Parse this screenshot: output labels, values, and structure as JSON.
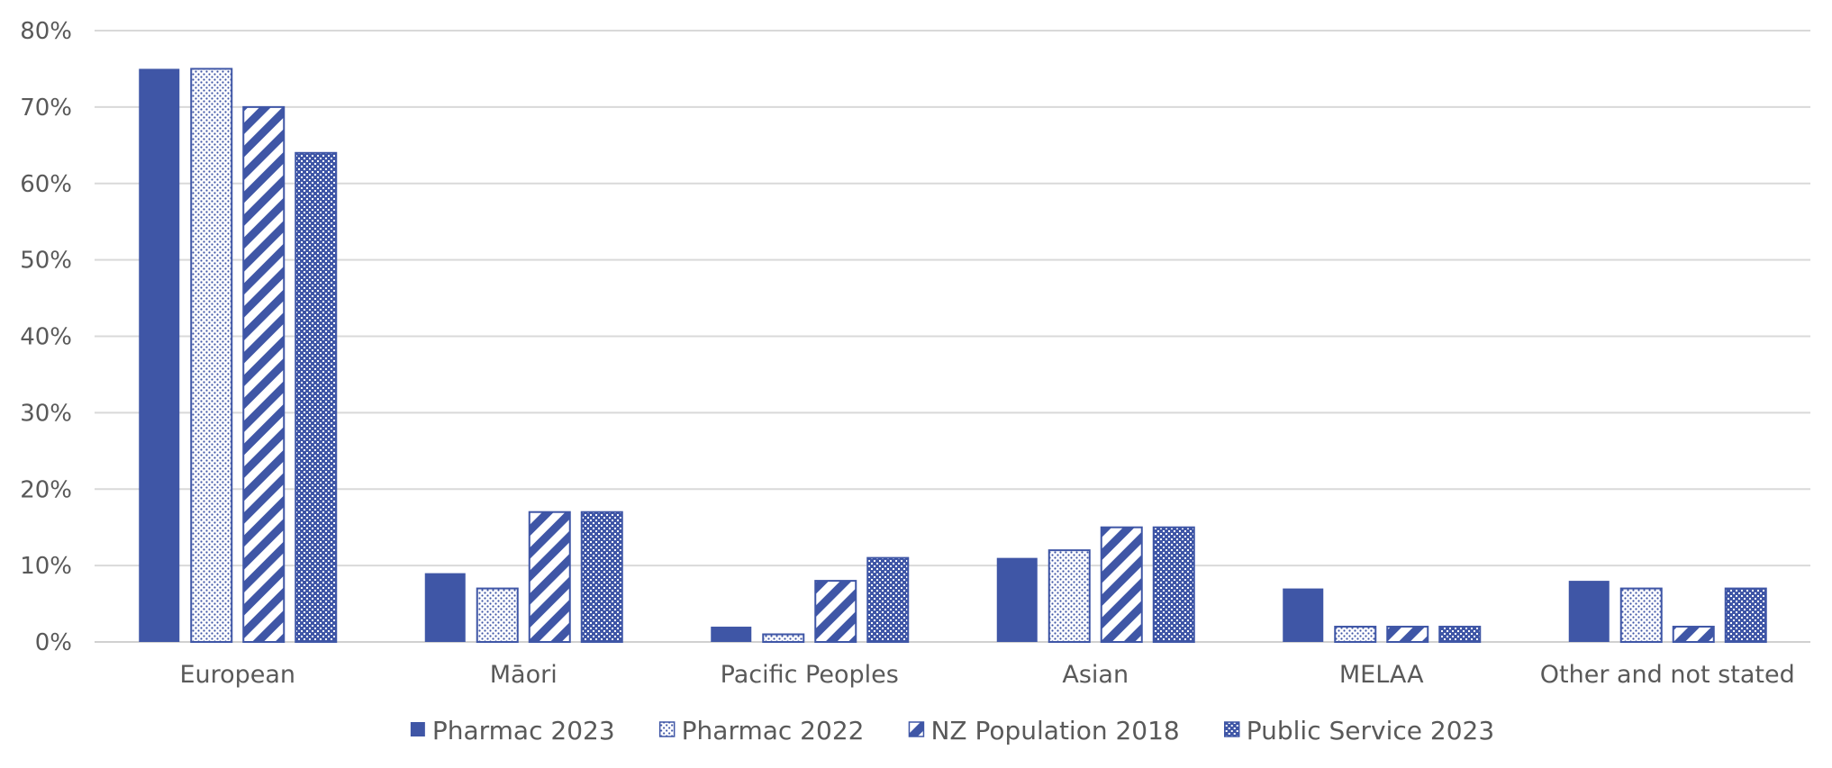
{
  "chart_data": {
    "type": "bar",
    "title": "",
    "xlabel": "",
    "ylabel": "",
    "ylim": [
      0,
      80
    ],
    "y_ticks": [
      "0%",
      "10%",
      "20%",
      "30%",
      "40%",
      "50%",
      "60%",
      "70%",
      "80%"
    ],
    "y_tick_values": [
      0,
      10,
      20,
      30,
      40,
      50,
      60,
      70,
      80
    ],
    "grid": true,
    "legend_position": "bottom",
    "categories": [
      "European",
      "Māori",
      "Pacific Peoples",
      "Asian",
      "MELAA",
      "Other and not stated"
    ],
    "series": [
      {
        "name": "Pharmac 2023",
        "pattern": "solid",
        "values": [
          75,
          9,
          2,
          11,
          7,
          8
        ]
      },
      {
        "name": "Pharmac 2022",
        "pattern": "dotted",
        "values": [
          75,
          7,
          1,
          12,
          2,
          7
        ]
      },
      {
        "name": "NZ Population 2018",
        "pattern": "diagonal",
        "values": [
          70,
          17,
          8,
          15,
          2,
          2
        ]
      },
      {
        "name": "Public Service 2023",
        "pattern": "checker",
        "values": [
          64,
          17,
          11,
          15,
          2,
          7
        ]
      }
    ]
  },
  "colors": {
    "bar": "#3f56a6",
    "grid": "#d9d9d9",
    "text": "#595959"
  }
}
